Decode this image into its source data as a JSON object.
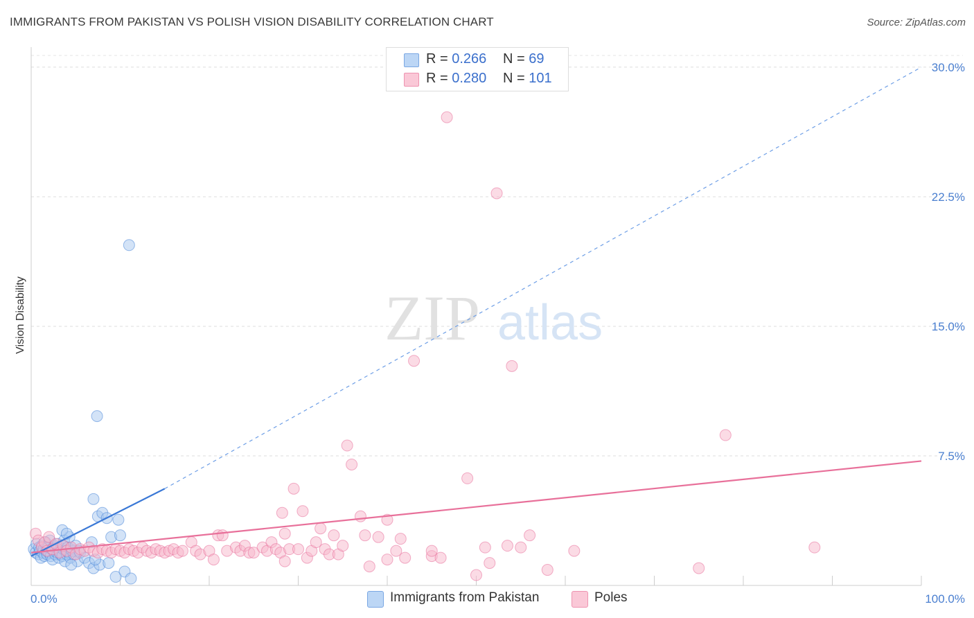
{
  "title": "IMMIGRANTS FROM PAKISTAN VS POLISH VISION DISABILITY CORRELATION CHART",
  "source": "Source: ZipAtlas.com",
  "watermark": {
    "zip": "ZIP",
    "atlas": "atlas"
  },
  "legend": {
    "rows": [
      {
        "r_label": "R =",
        "r_value": "0.266",
        "n_label": "N =",
        "n_value": "69",
        "color": "#a8c8f0"
      },
      {
        "r_label": "R =",
        "r_value": "0.280",
        "n_label": "N =",
        "n_value": "101",
        "color": "#f7b8cc"
      }
    ]
  },
  "bottom_legend": [
    {
      "label": "Immigrants from Pakistan",
      "color": "#a8c8f0"
    },
    {
      "label": "Poles",
      "color": "#f7b8cc"
    }
  ],
  "chart_data": {
    "type": "scatter",
    "title": "IMMIGRANTS FROM PAKISTAN VS POLISH VISION DISABILITY CORRELATION CHART",
    "ylabel": "Vision Disability",
    "xlabel": "",
    "xlim": [
      0,
      100
    ],
    "ylim": [
      0,
      31
    ],
    "x_ticks": [
      {
        "value": 0,
        "label": "0.0%"
      },
      {
        "value": 100,
        "label": "100.0%"
      }
    ],
    "y_ticks": [
      {
        "value": 7.5,
        "label": "7.5%"
      },
      {
        "value": 15.0,
        "label": "15.0%"
      },
      {
        "value": 22.5,
        "label": "22.5%"
      },
      {
        "value": 30.0,
        "label": "30.0%"
      }
    ],
    "grid": "horizontal dashed",
    "legend_position": "top-center",
    "series": [
      {
        "name": "Immigrants from Pakistan",
        "color": "#4a86d8",
        "fill": "#a8c8f0",
        "points": [
          [
            0.3,
            2.1
          ],
          [
            0.5,
            1.9
          ],
          [
            0.6,
            2.4
          ],
          [
            0.8,
            1.8
          ],
          [
            0.9,
            2.2
          ],
          [
            1.0,
            2.0
          ],
          [
            1.1,
            1.6
          ],
          [
            1.2,
            2.3
          ],
          [
            1.3,
            1.9
          ],
          [
            1.4,
            2.1
          ],
          [
            1.5,
            1.7
          ],
          [
            1.6,
            2.5
          ],
          [
            1.7,
            2.0
          ],
          [
            1.8,
            1.8
          ],
          [
            1.9,
            2.2
          ],
          [
            2.0,
            1.9
          ],
          [
            2.1,
            2.6
          ],
          [
            2.2,
            1.7
          ],
          [
            2.3,
            2.1
          ],
          [
            2.4,
            1.5
          ],
          [
            2.5,
            2.0
          ],
          [
            2.6,
            2.3
          ],
          [
            2.7,
            1.8
          ],
          [
            2.8,
            2.2
          ],
          [
            2.9,
            1.9
          ],
          [
            3.0,
            2.4
          ],
          [
            3.1,
            1.6
          ],
          [
            3.2,
            2.0
          ],
          [
            3.3,
            1.8
          ],
          [
            3.4,
            2.3
          ],
          [
            3.5,
            1.7
          ],
          [
            3.6,
            2.1
          ],
          [
            3.7,
            2.6
          ],
          [
            3.8,
            1.4
          ],
          [
            3.9,
            2.0
          ],
          [
            4.0,
            1.8
          ],
          [
            4.1,
            2.2
          ],
          [
            4.2,
            1.9
          ],
          [
            4.3,
            2.8
          ],
          [
            4.4,
            1.6
          ],
          [
            4.5,
            2.1
          ],
          [
            4.6,
            2.0
          ],
          [
            4.8,
            1.8
          ],
          [
            5.0,
            2.3
          ],
          [
            5.2,
            1.4
          ],
          [
            5.4,
            2.0
          ],
          [
            3.5,
            3.2
          ],
          [
            4.0,
            3.0
          ],
          [
            4.5,
            1.2
          ],
          [
            5.5,
            1.9
          ],
          [
            6.0,
            1.6
          ],
          [
            6.5,
            1.3
          ],
          [
            7.0,
            1.0
          ],
          [
            7.5,
            4.0
          ],
          [
            7.7,
            1.2
          ],
          [
            8.0,
            4.2
          ],
          [
            8.5,
            3.9
          ],
          [
            8.7,
            1.3
          ],
          [
            9.0,
            2.8
          ],
          [
            6.8,
            2.5
          ],
          [
            7.2,
            1.5
          ],
          [
            9.5,
            0.5
          ],
          [
            9.8,
            3.8
          ],
          [
            10.0,
            2.9
          ],
          [
            10.5,
            0.8
          ],
          [
            11.2,
            0.4
          ],
          [
            11.0,
            19.7
          ],
          [
            7.0,
            5.0
          ],
          [
            7.4,
            9.8
          ]
        ],
        "trend": {
          "x0": 0.0,
          "y0": 1.7,
          "x1": 15.0,
          "y1": 5.6,
          "dashed_to_x": 100.0,
          "dashed_to_y": 30.0
        }
      },
      {
        "name": "Poles",
        "color": "#e8709a",
        "fill": "#f7b8cc",
        "points": [
          [
            0.5,
            3.0
          ],
          [
            0.8,
            2.6
          ],
          [
            1.2,
            2.2
          ],
          [
            1.5,
            2.5
          ],
          [
            1.8,
            2.0
          ],
          [
            2.0,
            2.8
          ],
          [
            2.4,
            2.1
          ],
          [
            2.8,
            2.4
          ],
          [
            3.2,
            1.9
          ],
          [
            3.6,
            2.3
          ],
          [
            4.0,
            2.0
          ],
          [
            4.5,
            2.2
          ],
          [
            5.0,
            1.8
          ],
          [
            5.5,
            2.1
          ],
          [
            6.0,
            2.0
          ],
          [
            6.5,
            2.2
          ],
          [
            7.0,
            2.0
          ],
          [
            7.5,
            1.9
          ],
          [
            8.0,
            2.1
          ],
          [
            8.5,
            2.0
          ],
          [
            9.0,
            1.9
          ],
          [
            9.5,
            2.1
          ],
          [
            10.0,
            2.0
          ],
          [
            10.5,
            1.9
          ],
          [
            11.0,
            2.1
          ],
          [
            11.5,
            2.0
          ],
          [
            12.0,
            1.9
          ],
          [
            12.5,
            2.2
          ],
          [
            13.0,
            2.0
          ],
          [
            13.5,
            1.9
          ],
          [
            14.0,
            2.1
          ],
          [
            14.5,
            2.0
          ],
          [
            15.0,
            1.9
          ],
          [
            15.5,
            2.0
          ],
          [
            16.0,
            2.1
          ],
          [
            16.5,
            1.9
          ],
          [
            17.0,
            2.0
          ],
          [
            18.0,
            2.5
          ],
          [
            18.5,
            2.0
          ],
          [
            19.0,
            1.8
          ],
          [
            20.0,
            2.0
          ],
          [
            20.5,
            1.5
          ],
          [
            21.0,
            2.9
          ],
          [
            21.5,
            2.9
          ],
          [
            22.0,
            2.0
          ],
          [
            23.0,
            2.2
          ],
          [
            23.5,
            2.0
          ],
          [
            24.0,
            2.3
          ],
          [
            24.5,
            1.9
          ],
          [
            25.0,
            1.9
          ],
          [
            26.0,
            2.2
          ],
          [
            26.5,
            2.0
          ],
          [
            27.0,
            2.5
          ],
          [
            27.5,
            2.1
          ],
          [
            28.0,
            1.9
          ],
          [
            28.5,
            3.0
          ],
          [
            29.0,
            2.1
          ],
          [
            28.2,
            4.2
          ],
          [
            28.5,
            1.4
          ],
          [
            29.5,
            5.6
          ],
          [
            30.0,
            2.1
          ],
          [
            30.5,
            4.3
          ],
          [
            31.0,
            1.6
          ],
          [
            31.5,
            2.0
          ],
          [
            32.0,
            2.5
          ],
          [
            32.5,
            3.3
          ],
          [
            33.0,
            2.1
          ],
          [
            33.5,
            1.8
          ],
          [
            34.0,
            2.9
          ],
          [
            34.5,
            1.8
          ],
          [
            35.0,
            2.3
          ],
          [
            35.5,
            8.1
          ],
          [
            36.0,
            7.0
          ],
          [
            37.0,
            4.0
          ],
          [
            37.5,
            2.9
          ],
          [
            38.0,
            1.1
          ],
          [
            39.0,
            2.8
          ],
          [
            40.0,
            1.5
          ],
          [
            41.0,
            2.0
          ],
          [
            41.5,
            2.7
          ],
          [
            42.0,
            1.6
          ],
          [
            43.0,
            13.0
          ],
          [
            45.0,
            1.7
          ],
          [
            46.0,
            1.6
          ],
          [
            46.7,
            27.1
          ],
          [
            49.0,
            6.2
          ],
          [
            50.0,
            0.6
          ],
          [
            51.0,
            2.2
          ],
          [
            51.5,
            1.3
          ],
          [
            52.3,
            22.7
          ],
          [
            53.5,
            2.3
          ],
          [
            54.0,
            12.7
          ],
          [
            55.0,
            2.2
          ],
          [
            56.0,
            2.9
          ],
          [
            58.0,
            0.9
          ],
          [
            61.0,
            2.0
          ],
          [
            75.0,
            1.0
          ],
          [
            78.0,
            8.7
          ],
          [
            88.0,
            2.2
          ],
          [
            40.0,
            3.8
          ],
          [
            45.0,
            2.0
          ]
        ],
        "trend": {
          "x0": 0.0,
          "y0": 1.9,
          "x1": 100.0,
          "y1": 7.2
        }
      }
    ]
  }
}
